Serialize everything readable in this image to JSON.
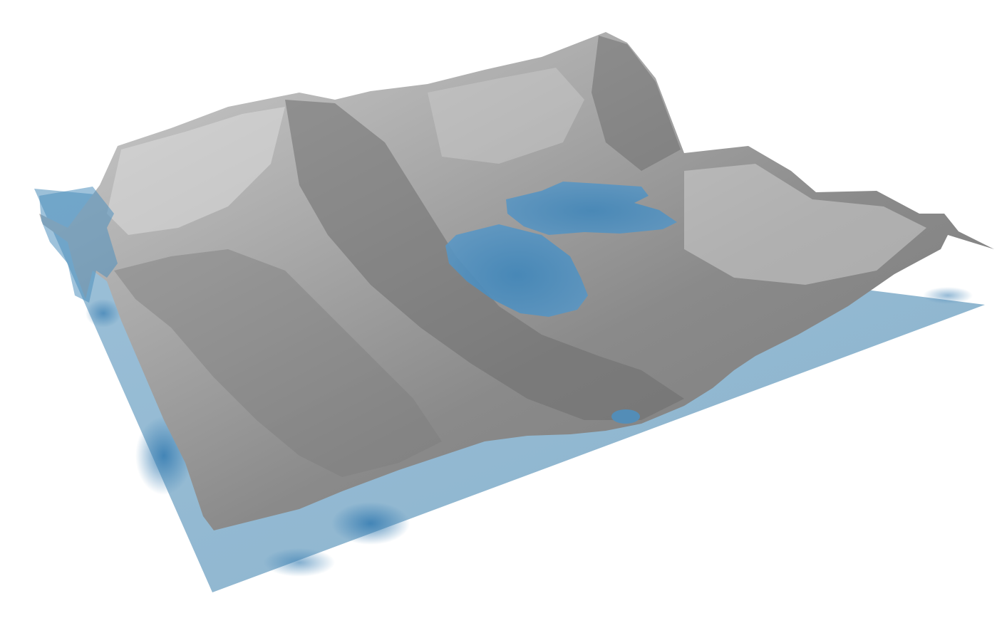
{
  "scene": {
    "subject": "terrain-with-water-volumes",
    "colors": {
      "background": "#ffffff",
      "terrain_light": "#d0d0d0",
      "terrain_mid": "#9a9a9a",
      "terrain_dark": "#5a5a5a",
      "water_plane": "#8fb5cf",
      "water_plane_deep": "#4a8ab8",
      "water_body": "#4f8fbe",
      "water_body_dark": "#3579ad"
    }
  }
}
